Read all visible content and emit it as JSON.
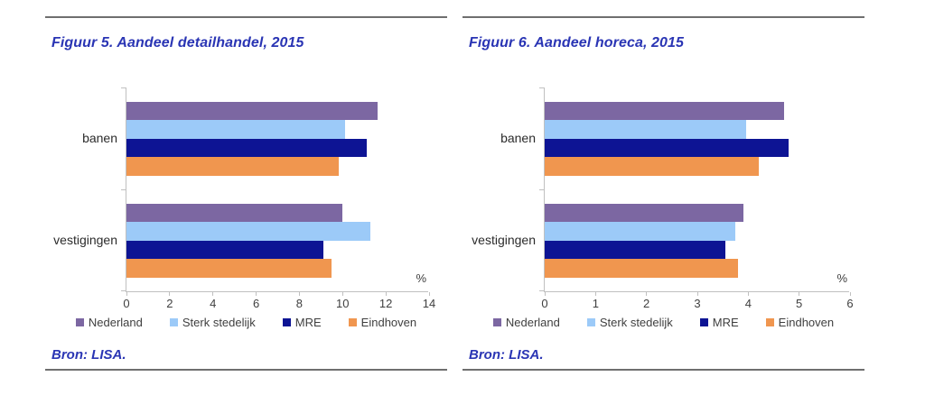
{
  "figures": [
    {
      "title": "Figuur 5. Aandeel detailhandel, 2015",
      "source": "Bron: LISA."
    },
    {
      "title": "Figuur 6. Aandeel horeca, 2015",
      "source": "Bron: LISA."
    }
  ],
  "chart_data": [
    {
      "type": "bar",
      "orientation": "horizontal",
      "title": "Figuur 5. Aandeel detailhandel, 2015",
      "categories": [
        "banen",
        "vestigingen"
      ],
      "series": [
        {
          "name": "Nederland",
          "color": "#7c67a2",
          "values": [
            11.6,
            10.0
          ]
        },
        {
          "name": "Sterk stedelijk",
          "color": "#9ccaf8",
          "values": [
            10.1,
            11.3
          ]
        },
        {
          "name": "MRE",
          "color": "#0d1494",
          "values": [
            11.1,
            9.1
          ]
        },
        {
          "name": "Eindhoven",
          "color": "#f0964f",
          "values": [
            9.8,
            9.5
          ]
        }
      ],
      "xlabel": "%",
      "xlim": [
        0,
        14
      ],
      "xticks": [
        0,
        2,
        4,
        6,
        8,
        10,
        12,
        14
      ],
      "grid": false,
      "legend_position": "bottom"
    },
    {
      "type": "bar",
      "orientation": "horizontal",
      "title": "Figuur 6. Aandeel horeca, 2015",
      "categories": [
        "banen",
        "vestigingen"
      ],
      "series": [
        {
          "name": "Nederland",
          "color": "#7c67a2",
          "values": [
            4.7,
            3.9
          ]
        },
        {
          "name": "Sterk stedelijk",
          "color": "#9ccaf8",
          "values": [
            3.95,
            3.75
          ]
        },
        {
          "name": "MRE",
          "color": "#0d1494",
          "values": [
            4.8,
            3.55
          ]
        },
        {
          "name": "Eindhoven",
          "color": "#f0964f",
          "values": [
            4.2,
            3.8
          ]
        }
      ],
      "xlabel": "%",
      "xlim": [
        0,
        6
      ],
      "xticks": [
        0,
        1,
        2,
        3,
        4,
        5,
        6
      ],
      "grid": false,
      "legend_position": "bottom"
    }
  ],
  "colors": {
    "heading_text": "#2a35b4",
    "axis": "#c0c0c0",
    "tick_label": "#3f3f3f",
    "divider": "#6f6f6f"
  }
}
